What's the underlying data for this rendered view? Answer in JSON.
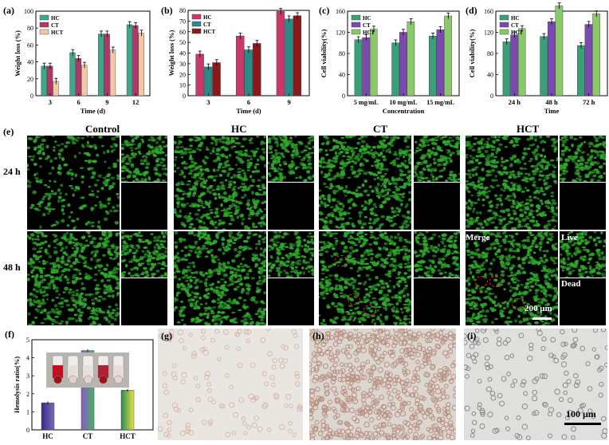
{
  "panel_labels": {
    "a": "(a)",
    "b": "(b)",
    "c": "(c)",
    "d": "(d)",
    "e": "(e)",
    "f": "(f)",
    "g": "(g)",
    "h": "(h)",
    "i": "(i)"
  },
  "colors": {
    "HC": "#3ea88a",
    "CT": "#b03868",
    "HCT": "#f4c8a4",
    "b_HC": "#c8386a",
    "b_CT": "#2a8a88",
    "b_HCT": "#8a1a1a",
    "cd_HC": "#3aa07a",
    "cd_CT": "#7a4ab0",
    "cd_HCT": "#8ac86a",
    "live": "#2ea82a"
  },
  "chart_data": [
    {
      "type": "bar",
      "panel": "a",
      "xlabel": "Time (d)",
      "ylabel": "Weight loss (%)",
      "categories": [
        "3",
        "6",
        "9",
        "12"
      ],
      "ylim": [
        0,
        100
      ],
      "yticks": [
        0,
        20,
        40,
        60,
        80,
        100
      ],
      "legend_position": "top-left",
      "series": [
        {
          "name": "HC",
          "values": [
            35,
            51,
            73,
            84
          ]
        },
        {
          "name": "CT",
          "values": [
            35,
            44,
            73,
            83
          ]
        },
        {
          "name": "HCT",
          "values": [
            17,
            36,
            54,
            74
          ]
        }
      ]
    },
    {
      "type": "bar",
      "panel": "b",
      "xlabel": "Time (d)",
      "ylabel": "Weight loss (%)",
      "categories": [
        "3",
        "6",
        "9"
      ],
      "ylim": [
        0,
        80
      ],
      "yticks": [
        0,
        10,
        20,
        30,
        40,
        50,
        60,
        70,
        80
      ],
      "legend_position": "top-left",
      "series": [
        {
          "name": "HC",
          "values": [
            39,
            56,
            79
          ]
        },
        {
          "name": "CT",
          "values": [
            27,
            43,
            72
          ]
        },
        {
          "name": "HCT",
          "values": [
            31,
            49,
            75
          ]
        }
      ]
    },
    {
      "type": "bar",
      "panel": "c",
      "xlabel": "Concentration",
      "ylabel": "Cell viability(%)",
      "categories": [
        "5 mg/mL",
        "10 mg/mL",
        "15 mg/mL"
      ],
      "ylim": [
        0,
        160
      ],
      "yticks": [
        0,
        40,
        80,
        120,
        160
      ],
      "legend_position": "top-left",
      "series": [
        {
          "name": "HC",
          "values": [
            106,
            100,
            113
          ]
        },
        {
          "name": "CT",
          "values": [
            110,
            120,
            125
          ]
        },
        {
          "name": "HCT",
          "values": [
            126,
            140,
            151
          ]
        }
      ]
    },
    {
      "type": "bar",
      "panel": "d",
      "xlabel": "Time",
      "ylabel": "Cell viability(%)",
      "categories": [
        "24 h",
        "48 h",
        "72 h"
      ],
      "ylim": [
        0,
        160
      ],
      "yticks": [
        0,
        40,
        80,
        120,
        160
      ],
      "legend_position": "top-left",
      "series": [
        {
          "name": "HC",
          "values": [
            102,
            112,
            95
          ]
        },
        {
          "name": "CT",
          "values": [
            115,
            140,
            135
          ]
        },
        {
          "name": "HCT",
          "values": [
            127,
            170,
            155
          ]
        }
      ]
    },
    {
      "type": "bar",
      "panel": "f",
      "xlabel": "",
      "ylabel": "Hemolysis ratio(%)",
      "categories": [
        "HC",
        "CT",
        "HCT"
      ],
      "ylim": [
        0,
        5
      ],
      "yticks": [
        0,
        1,
        2,
        3,
        4,
        5
      ],
      "series": [
        {
          "name": "",
          "values": [
            1.5,
            4.4,
            2.2
          ]
        }
      ]
    }
  ],
  "panel_e": {
    "columns": [
      "Control",
      "HC",
      "CT",
      "HCT"
    ],
    "rows": [
      "24 h",
      "48 h"
    ],
    "merge_label": "Merge",
    "live_label": "Live",
    "dead_label": "Dead",
    "scale_label": "200 μm"
  },
  "panel_i": {
    "scale_label": "100 μm"
  }
}
